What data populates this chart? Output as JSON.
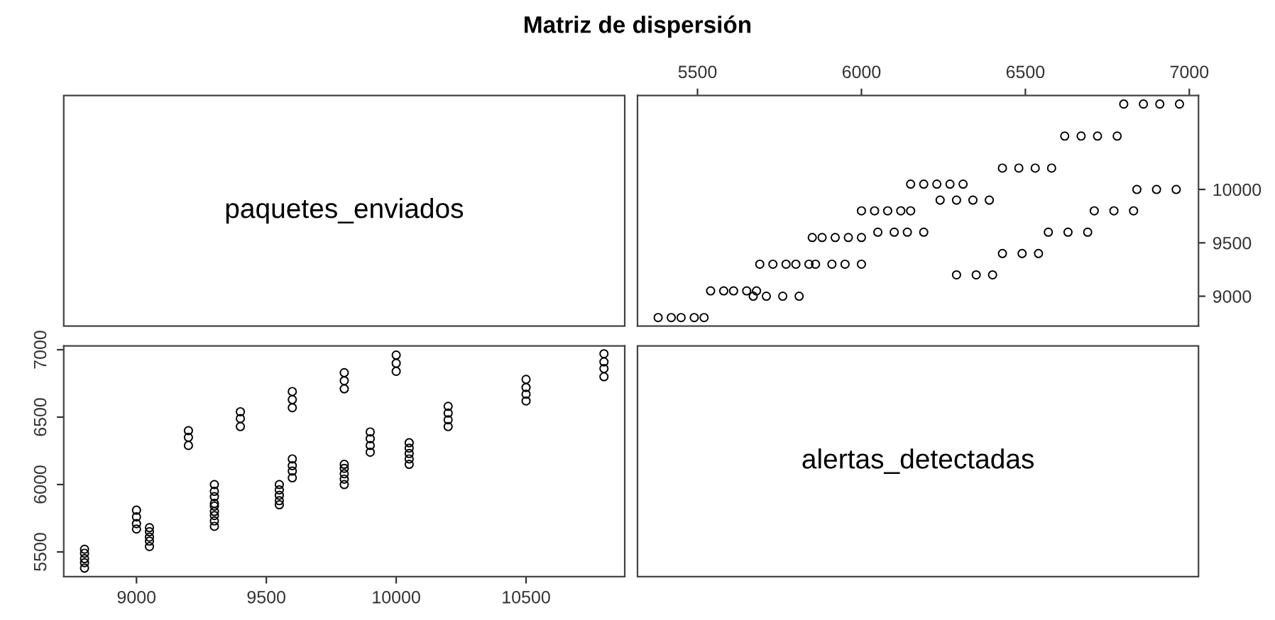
{
  "chart_data": [
    {
      "type": "other",
      "title": "Matriz de dispersión",
      "annotations": [
        "paquetes_enviados"
      ]
    },
    {
      "type": "scatter",
      "marker": "circle",
      "color": "#000000",
      "xlim": [
        5317,
        7028
      ],
      "xticks": [
        5500,
        6000,
        6500,
        7000
      ],
      "ylim": [
        8720,
        10880
      ],
      "yticks": [
        9000,
        9500,
        10000
      ],
      "x": [
        5380,
        5420,
        5450,
        5490,
        5520,
        5670,
        5710,
        5760,
        5810,
        5540,
        5580,
        5610,
        5650,
        5680,
        6290,
        6350,
        6400,
        5690,
        5730,
        5770,
        5800,
        5840,
        5860,
        5910,
        5950,
        6000,
        6430,
        6490,
        6540,
        5850,
        5880,
        5920,
        5960,
        6000,
        6050,
        6100,
        6140,
        6190,
        6570,
        6630,
        6690,
        6000,
        6040,
        6080,
        6120,
        6150,
        6710,
        6770,
        6830,
        6240,
        6290,
        6340,
        6390,
        6840,
        6900,
        6960,
        6150,
        6190,
        6230,
        6270,
        6310,
        6430,
        6480,
        6530,
        6580,
        6620,
        6670,
        6720,
        6780,
        6800,
        6860,
        6910,
        6970
      ],
      "values": [
        8800,
        8800,
        8800,
        8800,
        8800,
        9000,
        9000,
        9000,
        9000,
        9050,
        9050,
        9050,
        9050,
        9050,
        9200,
        9200,
        9200,
        9300,
        9300,
        9300,
        9300,
        9300,
        9300,
        9300,
        9300,
        9300,
        9400,
        9400,
        9400,
        9550,
        9550,
        9550,
        9550,
        9550,
        9600,
        9600,
        9600,
        9600,
        9600,
        9600,
        9600,
        9800,
        9800,
        9800,
        9800,
        9800,
        9800,
        9800,
        9800,
        9900,
        9900,
        9900,
        9900,
        10000,
        10000,
        10000,
        10050,
        10050,
        10050,
        10050,
        10050,
        10200,
        10200,
        10200,
        10200,
        10500,
        10500,
        10500,
        10500,
        10800,
        10800,
        10800,
        10800
      ]
    },
    {
      "type": "scatter",
      "marker": "circle",
      "color": "#000000",
      "xlim": [
        8720,
        10880
      ],
      "xticks": [
        9000,
        9500,
        10000,
        10500
      ],
      "ylim": [
        5317,
        7028
      ],
      "yticks": [
        5500,
        6000,
        6500,
        7000
      ],
      "x": [
        8800,
        8800,
        8800,
        8800,
        8800,
        9000,
        9000,
        9000,
        9000,
        9050,
        9050,
        9050,
        9050,
        9050,
        9200,
        9200,
        9200,
        9300,
        9300,
        9300,
        9300,
        9300,
        9300,
        9300,
        9300,
        9300,
        9400,
        9400,
        9400,
        9550,
        9550,
        9550,
        9550,
        9550,
        9600,
        9600,
        9600,
        9600,
        9600,
        9600,
        9600,
        9800,
        9800,
        9800,
        9800,
        9800,
        9800,
        9800,
        9800,
        9900,
        9900,
        9900,
        9900,
        10000,
        10000,
        10000,
        10050,
        10050,
        10050,
        10050,
        10050,
        10200,
        10200,
        10200,
        10200,
        10500,
        10500,
        10500,
        10500,
        10800,
        10800,
        10800,
        10800
      ],
      "values": [
        5380,
        5420,
        5450,
        5490,
        5520,
        5670,
        5710,
        5760,
        5810,
        5540,
        5580,
        5610,
        5650,
        5680,
        6290,
        6350,
        6400,
        5690,
        5730,
        5770,
        5800,
        5840,
        5860,
        5910,
        5950,
        6000,
        6430,
        6490,
        6540,
        5850,
        5880,
        5920,
        5960,
        6000,
        6050,
        6100,
        6140,
        6190,
        6570,
        6630,
        6690,
        6000,
        6040,
        6080,
        6120,
        6150,
        6710,
        6770,
        6830,
        6240,
        6290,
        6340,
        6390,
        6840,
        6900,
        6960,
        6150,
        6190,
        6230,
        6270,
        6310,
        6430,
        6480,
        6530,
        6580,
        6620,
        6670,
        6720,
        6780,
        6800,
        6860,
        6910,
        6970
      ]
    },
    {
      "type": "other",
      "annotations": [
        "alertas_detectadas"
      ]
    }
  ]
}
